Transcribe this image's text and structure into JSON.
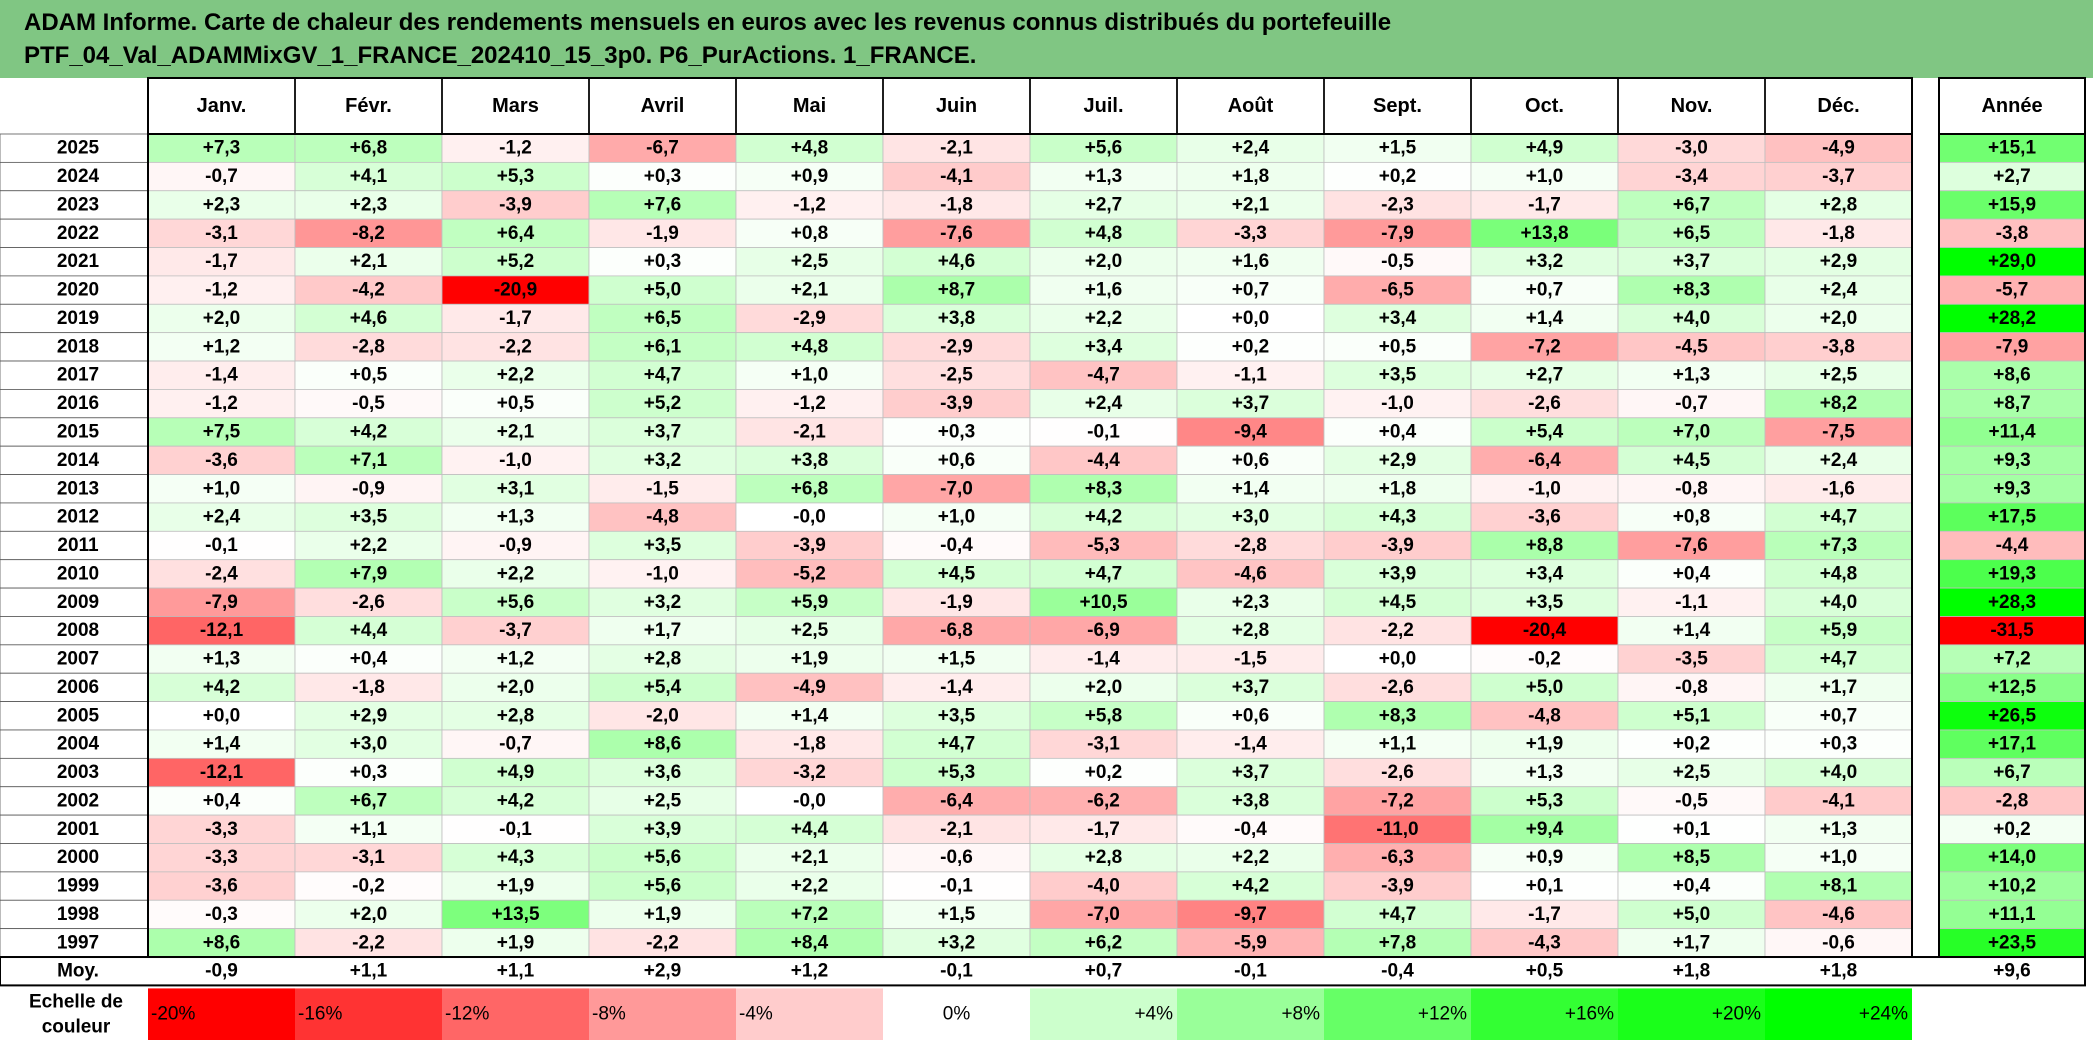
{
  "title": {
    "line1": "ADAM Informe. Carte de chaleur des rendements mensuels en euros avec les revenus connus distribués du portefeuille",
    "line2": "PTF_04_Val_ADAMMixGV_1_FRANCE_202410_15_3p0. P6_PurActions. 1_FRANCE."
  },
  "colors": {
    "title_band": "#80c683",
    "negative_max": "#ff0000",
    "neutral": "#ffffff",
    "positive_max": "#00ff00"
  },
  "chart_data": {
    "type": "heatmap",
    "columns": [
      "Janv.",
      "Févr.",
      "Mars",
      "Avril",
      "Mai",
      "Juin",
      "Juil.",
      "Août",
      "Sept.",
      "Oct.",
      "Nov.",
      "Déc."
    ],
    "year_header": "Année",
    "rows": [
      {
        "year": "2025",
        "values": [
          "+7,3",
          "+6,8",
          "-1,2",
          "-6,7",
          "+4,8",
          "-2,1",
          "+5,6",
          "+2,4",
          "+1,5",
          "+4,9",
          "-3,0",
          "-4,9"
        ],
        "annual": "+15,1"
      },
      {
        "year": "2024",
        "values": [
          "-0,7",
          "+4,1",
          "+5,3",
          "+0,3",
          "+0,9",
          "-4,1",
          "+1,3",
          "+1,8",
          "+0,2",
          "+1,0",
          "-3,4",
          "-3,7"
        ],
        "annual": "+2,7"
      },
      {
        "year": "2023",
        "values": [
          "+2,3",
          "+2,3",
          "-3,9",
          "+7,6",
          "-1,2",
          "-1,8",
          "+2,7",
          "+2,1",
          "-2,3",
          "-1,7",
          "+6,7",
          "+2,8"
        ],
        "annual": "+15,9"
      },
      {
        "year": "2022",
        "values": [
          "-3,1",
          "-8,2",
          "+6,4",
          "-1,9",
          "+0,8",
          "-7,6",
          "+4,8",
          "-3,3",
          "-7,9",
          "+13,8",
          "+6,5",
          "-1,8"
        ],
        "annual": "-3,8"
      },
      {
        "year": "2021",
        "values": [
          "-1,7",
          "+2,1",
          "+5,2",
          "+0,3",
          "+2,5",
          "+4,6",
          "+2,0",
          "+1,6",
          "-0,5",
          "+3,2",
          "+3,7",
          "+2,9"
        ],
        "annual": "+29,0"
      },
      {
        "year": "2020",
        "values": [
          "-1,2",
          "-4,2",
          "-20,9",
          "+5,0",
          "+2,1",
          "+8,7",
          "+1,6",
          "+0,7",
          "-6,5",
          "+0,7",
          "+8,3",
          "+2,4"
        ],
        "annual": "-5,7"
      },
      {
        "year": "2019",
        "values": [
          "+2,0",
          "+4,6",
          "-1,7",
          "+6,5",
          "-2,9",
          "+3,8",
          "+2,2",
          "+0,0",
          "+3,4",
          "+1,4",
          "+4,0",
          "+2,0"
        ],
        "annual": "+28,2"
      },
      {
        "year": "2018",
        "values": [
          "+1,2",
          "-2,8",
          "-2,2",
          "+6,1",
          "+4,8",
          "-2,9",
          "+3,4",
          "+0,2",
          "+0,5",
          "-7,2",
          "-4,5",
          "-3,8"
        ],
        "annual": "-7,9"
      },
      {
        "year": "2017",
        "values": [
          "-1,4",
          "+0,5",
          "+2,2",
          "+4,7",
          "+1,0",
          "-2,5",
          "-4,7",
          "-1,1",
          "+3,5",
          "+2,7",
          "+1,3",
          "+2,5"
        ],
        "annual": "+8,6"
      },
      {
        "year": "2016",
        "values": [
          "-1,2",
          "-0,5",
          "+0,5",
          "+5,2",
          "-1,2",
          "-3,9",
          "+2,4",
          "+3,7",
          "-1,0",
          "-2,6",
          "-0,7",
          "+8,2"
        ],
        "annual": "+8,7"
      },
      {
        "year": "2015",
        "values": [
          "+7,5",
          "+4,2",
          "+2,1",
          "+3,7",
          "-2,1",
          "+0,3",
          "-0,1",
          "-9,4",
          "+0,4",
          "+5,4",
          "+7,0",
          "-7,5"
        ],
        "annual": "+11,4"
      },
      {
        "year": "2014",
        "values": [
          "-3,6",
          "+7,1",
          "-1,0",
          "+3,2",
          "+3,8",
          "+0,6",
          "-4,4",
          "+0,6",
          "+2,9",
          "-6,4",
          "+4,5",
          "+2,4"
        ],
        "annual": "+9,3"
      },
      {
        "year": "2013",
        "values": [
          "+1,0",
          "-0,9",
          "+3,1",
          "-1,5",
          "+6,8",
          "-7,0",
          "+8,3",
          "+1,4",
          "+1,8",
          "-1,0",
          "-0,8",
          "-1,6"
        ],
        "annual": "+9,3"
      },
      {
        "year": "2012",
        "values": [
          "+2,4",
          "+3,5",
          "+1,3",
          "-4,8",
          "-0,0",
          "+1,0",
          "+4,2",
          "+3,0",
          "+4,3",
          "-3,6",
          "+0,8",
          "+4,7"
        ],
        "annual": "+17,5"
      },
      {
        "year": "2011",
        "values": [
          "-0,1",
          "+2,2",
          "-0,9",
          "+3,5",
          "-3,9",
          "-0,4",
          "-5,3",
          "-2,8",
          "-3,9",
          "+8,8",
          "-7,6",
          "+7,3"
        ],
        "annual": "-4,4"
      },
      {
        "year": "2010",
        "values": [
          "-2,4",
          "+7,9",
          "+2,2",
          "-1,0",
          "-5,2",
          "+4,5",
          "+4,7",
          "-4,6",
          "+3,9",
          "+3,4",
          "+0,4",
          "+4,8"
        ],
        "annual": "+19,3"
      },
      {
        "year": "2009",
        "values": [
          "-7,9",
          "-2,6",
          "+5,6",
          "+3,2",
          "+5,9",
          "-1,9",
          "+10,5",
          "+2,3",
          "+4,5",
          "+3,5",
          "-1,1",
          "+4,0"
        ],
        "annual": "+28,3"
      },
      {
        "year": "2008",
        "values": [
          "-12,1",
          "+4,4",
          "-3,7",
          "+1,7",
          "+2,5",
          "-6,8",
          "-6,9",
          "+2,8",
          "-2,2",
          "-20,4",
          "+1,4",
          "+5,9"
        ],
        "annual": "-31,5"
      },
      {
        "year": "2007",
        "values": [
          "+1,3",
          "+0,4",
          "+1,2",
          "+2,8",
          "+1,9",
          "+1,5",
          "-1,4",
          "-1,5",
          "+0,0",
          "-0,2",
          "-3,5",
          "+4,7"
        ],
        "annual": "+7,2"
      },
      {
        "year": "2006",
        "values": [
          "+4,2",
          "-1,8",
          "+2,0",
          "+5,4",
          "-4,9",
          "-1,4",
          "+2,0",
          "+3,7",
          "-2,6",
          "+5,0",
          "-0,8",
          "+1,7"
        ],
        "annual": "+12,5"
      },
      {
        "year": "2005",
        "values": [
          "+0,0",
          "+2,9",
          "+2,8",
          "-2,0",
          "+1,4",
          "+3,5",
          "+5,8",
          "+0,6",
          "+8,3",
          "-4,8",
          "+5,1",
          "+0,7"
        ],
        "annual": "+26,5"
      },
      {
        "year": "2004",
        "values": [
          "+1,4",
          "+3,0",
          "-0,7",
          "+8,6",
          "-1,8",
          "+4,7",
          "-3,1",
          "-1,4",
          "+1,1",
          "+1,9",
          "+0,2",
          "+0,3"
        ],
        "annual": "+17,1"
      },
      {
        "year": "2003",
        "values": [
          "-12,1",
          "+0,3",
          "+4,9",
          "+3,6",
          "-3,2",
          "+5,3",
          "+0,2",
          "+3,7",
          "-2,6",
          "+1,3",
          "+2,5",
          "+4,0"
        ],
        "annual": "+6,7"
      },
      {
        "year": "2002",
        "values": [
          "+0,4",
          "+6,7",
          "+4,2",
          "+2,5",
          "-0,0",
          "-6,4",
          "-6,2",
          "+3,8",
          "-7,2",
          "+5,3",
          "-0,5",
          "-4,1"
        ],
        "annual": "-2,8"
      },
      {
        "year": "2001",
        "values": [
          "-3,3",
          "+1,1",
          "-0,1",
          "+3,9",
          "+4,4",
          "-2,1",
          "-1,7",
          "-0,4",
          "-11,0",
          "+9,4",
          "+0,1",
          "+1,3"
        ],
        "annual": "+0,2"
      },
      {
        "year": "2000",
        "values": [
          "-3,3",
          "-3,1",
          "+4,3",
          "+5,6",
          "+2,1",
          "-0,6",
          "+2,8",
          "+2,2",
          "-6,3",
          "+0,9",
          "+8,5",
          "+1,0"
        ],
        "annual": "+14,0"
      },
      {
        "year": "1999",
        "values": [
          "-3,6",
          "-0,2",
          "+1,9",
          "+5,6",
          "+2,2",
          "-0,1",
          "-4,0",
          "+4,2",
          "-3,9",
          "+0,1",
          "+0,4",
          "+8,1"
        ],
        "annual": "+10,2"
      },
      {
        "year": "1998",
        "values": [
          "-0,3",
          "+2,0",
          "+13,5",
          "+1,9",
          "+7,2",
          "+1,5",
          "-7,0",
          "-9,7",
          "+4,7",
          "-1,7",
          "+5,0",
          "-4,6"
        ],
        "annual": "+11,1"
      },
      {
        "year": "1997",
        "values": [
          "+8,6",
          "-2,2",
          "+1,9",
          "-2,2",
          "+8,4",
          "+3,2",
          "+6,2",
          "-5,9",
          "+7,8",
          "-4,3",
          "+1,7",
          "-0,6"
        ],
        "annual": "+23,5"
      }
    ],
    "average": {
      "label": "Moy.",
      "values": [
        "-0,9",
        "+1,1",
        "+1,1",
        "+2,9",
        "+1,2",
        "-0,1",
        "+0,7",
        "-0,1",
        "-0,4",
        "+0,5",
        "+1,8",
        "+1,8"
      ],
      "annual": "+9,6"
    },
    "scale": {
      "label_line1": "Echelle de",
      "label_line2": "couleur",
      "steps": [
        "-20%",
        "-16%",
        "-12%",
        "-8%",
        "-4%",
        "0%",
        "+4%",
        "+8%",
        "+12%",
        "+16%",
        "+20%",
        "+24%"
      ],
      "step_values": [
        -20,
        -16,
        -12,
        -8,
        -4,
        0,
        4,
        8,
        12,
        16,
        20,
        24
      ]
    }
  }
}
